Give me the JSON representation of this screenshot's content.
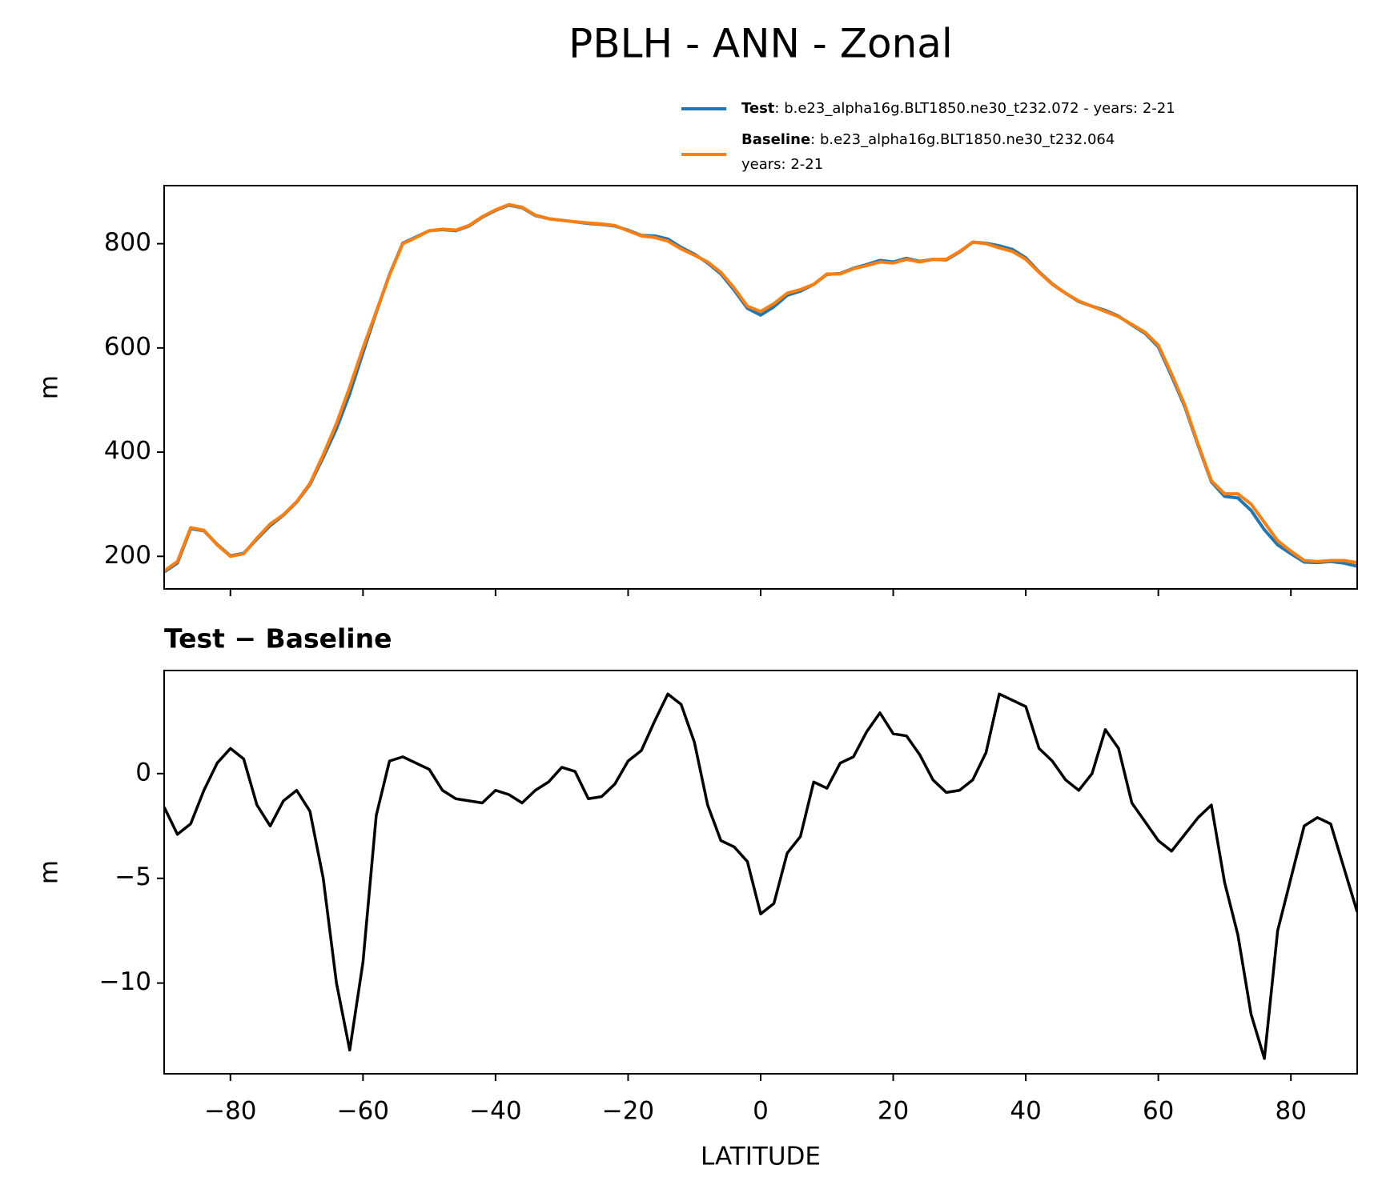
{
  "chart_data": [
    {
      "type": "line",
      "title": "PBLH - ANN - Zonal",
      "ylabel": "m",
      "x": [
        -90,
        -88,
        -86,
        -84,
        -82,
        -80,
        -78,
        -76,
        -74,
        -72,
        -70,
        -68,
        -66,
        -64,
        -62,
        -60,
        -58,
        -56,
        -54,
        -52,
        -50,
        -48,
        -46,
        -44,
        -42,
        -40,
        -38,
        -36,
        -34,
        -32,
        -30,
        -28,
        -26,
        -24,
        -22,
        -20,
        -18,
        -16,
        -14,
        -12,
        -10,
        -8,
        -6,
        -4,
        -2,
        0,
        2,
        4,
        6,
        8,
        10,
        12,
        14,
        16,
        18,
        20,
        22,
        24,
        26,
        28,
        30,
        32,
        34,
        36,
        38,
        40,
        42,
        44,
        46,
        48,
        50,
        52,
        54,
        56,
        58,
        60,
        62,
        64,
        66,
        68,
        70,
        72,
        74,
        76,
        78,
        80,
        82,
        84,
        86,
        88,
        90
      ],
      "series": [
        {
          "name": "Test",
          "description": ": b.e23_alpha16g.BLT1850.ne30_t232.072 - years: 2-21",
          "color": "#1f77b4",
          "values": [
            170,
            187,
            253,
            249,
            223,
            201,
            206,
            233,
            259,
            279,
            304,
            338,
            390,
            445,
            512,
            591,
            668,
            741,
            801,
            813,
            825,
            827,
            825,
            834,
            851,
            864,
            874,
            869,
            854,
            848,
            845,
            842,
            839,
            837,
            834,
            826,
            816,
            815,
            809,
            793,
            780,
            763,
            742,
            711,
            676,
            663,
            679,
            701,
            709,
            722,
            741,
            743,
            753,
            760,
            768,
            765,
            772,
            766,
            770,
            769,
            784,
            803,
            801,
            796,
            789,
            773,
            746,
            723,
            705,
            689,
            680,
            672,
            661,
            644,
            628,
            602,
            546,
            487,
            413,
            343,
            315,
            312,
            288,
            251,
            222,
            205,
            189,
            188,
            190,
            187,
            181
          ]
        },
        {
          "name": "Baseline",
          "description": [
            ": b.e23_alpha16g.BLT1850.ne30_t232.064",
            "years: 2-21"
          ],
          "color": "#ff7f0e",
          "values": [
            172,
            190,
            255,
            250,
            222,
            200,
            205,
            235,
            262,
            280,
            305,
            340,
            395,
            455,
            525,
            600,
            670,
            740,
            800,
            812,
            825,
            828,
            826,
            835,
            852,
            865,
            875,
            870,
            855,
            848,
            845,
            842,
            840,
            838,
            835,
            825,
            815,
            812,
            805,
            790,
            778,
            765,
            745,
            715,
            680,
            670,
            685,
            705,
            712,
            722,
            742,
            742,
            752,
            758,
            765,
            763,
            770,
            765,
            770,
            770,
            785,
            803,
            800,
            792,
            785,
            770,
            745,
            722,
            705,
            690,
            680,
            670,
            660,
            645,
            630,
            605,
            550,
            490,
            415,
            345,
            320,
            320,
            300,
            265,
            230,
            210,
            192,
            190,
            192,
            192,
            188
          ]
        }
      ],
      "xlim": [
        -90,
        90
      ],
      "xticks": [
        -80,
        -60,
        -40,
        -20,
        0,
        20,
        40,
        60,
        80
      ],
      "xticklabels": false,
      "ylim": [
        137.5,
        911.5
      ],
      "yticks": [
        200,
        400,
        600,
        800
      ]
    },
    {
      "type": "line",
      "title": "Test − Baseline",
      "ylabel": "m",
      "xlabel": "LATITUDE",
      "x": [
        -90,
        -88,
        -86,
        -84,
        -82,
        -80,
        -78,
        -76,
        -74,
        -72,
        -70,
        -68,
        -66,
        -64,
        -62,
        -60,
        -58,
        -56,
        -54,
        -52,
        -50,
        -48,
        -46,
        -44,
        -42,
        -40,
        -38,
        -36,
        -34,
        -32,
        -30,
        -28,
        -26,
        -24,
        -22,
        -20,
        -18,
        -16,
        -14,
        -12,
        -10,
        -8,
        -6,
        -4,
        -2,
        0,
        2,
        4,
        6,
        8,
        10,
        12,
        14,
        16,
        18,
        20,
        22,
        24,
        26,
        28,
        30,
        32,
        34,
        36,
        38,
        40,
        42,
        44,
        46,
        48,
        50,
        52,
        54,
        56,
        58,
        60,
        62,
        64,
        66,
        68,
        70,
        72,
        74,
        76,
        78,
        80,
        82,
        84,
        86,
        88,
        90
      ],
      "series": [
        {
          "color": "#000000",
          "values": [
            -1.6,
            -2.9,
            -2.4,
            -0.8,
            0.5,
            1.2,
            0.7,
            -1.5,
            -2.5,
            -1.3,
            -0.8,
            -1.8,
            -5,
            -10,
            -13.2,
            -9,
            -2,
            0.6,
            0.8,
            0.5,
            0.2,
            -0.8,
            -1.2,
            -1.3,
            -1.4,
            -0.8,
            -1.0,
            -1.4,
            -0.8,
            -0.4,
            0.3,
            0.1,
            -1.2,
            -1.1,
            -0.5,
            0.6,
            1.1,
            2.5,
            3.8,
            3.3,
            1.5,
            -1.5,
            -3.2,
            -3.5,
            -4.2,
            -6.7,
            -6.2,
            -3.8,
            -3.0,
            -0.4,
            -0.7,
            0.5,
            0.8,
            2.0,
            2.9,
            1.9,
            1.8,
            0.9,
            -0.3,
            -0.9,
            -0.8,
            -0.3,
            1.0,
            3.8,
            3.5,
            3.2,
            1.2,
            0.6,
            -0.3,
            -0.8,
            0.0,
            2.1,
            1.2,
            -1.4,
            -2.3,
            -3.2,
            -3.7,
            -2.9,
            -2.1,
            -1.5,
            -5.2,
            -7.7,
            -11.5,
            -13.6,
            -7.5,
            -5.0,
            -2.5,
            -2.1,
            -2.4,
            -4.5,
            -6.6
          ]
        }
      ],
      "xlim": [
        -90,
        90
      ],
      "xticks": [
        {
          "value": -80,
          "label": "−80"
        },
        {
          "value": -60,
          "label": "−60"
        },
        {
          "value": -40,
          "label": "−40"
        },
        {
          "value": -20,
          "label": "−20"
        },
        0,
        20,
        40,
        60,
        80
      ],
      "xticklabels": true,
      "ylim": [
        -14.33,
        4.92
      ],
      "yticks": [
        {
          "value": -10,
          "label": "−10"
        },
        {
          "value": -5,
          "label": "−5"
        },
        0
      ]
    }
  ]
}
